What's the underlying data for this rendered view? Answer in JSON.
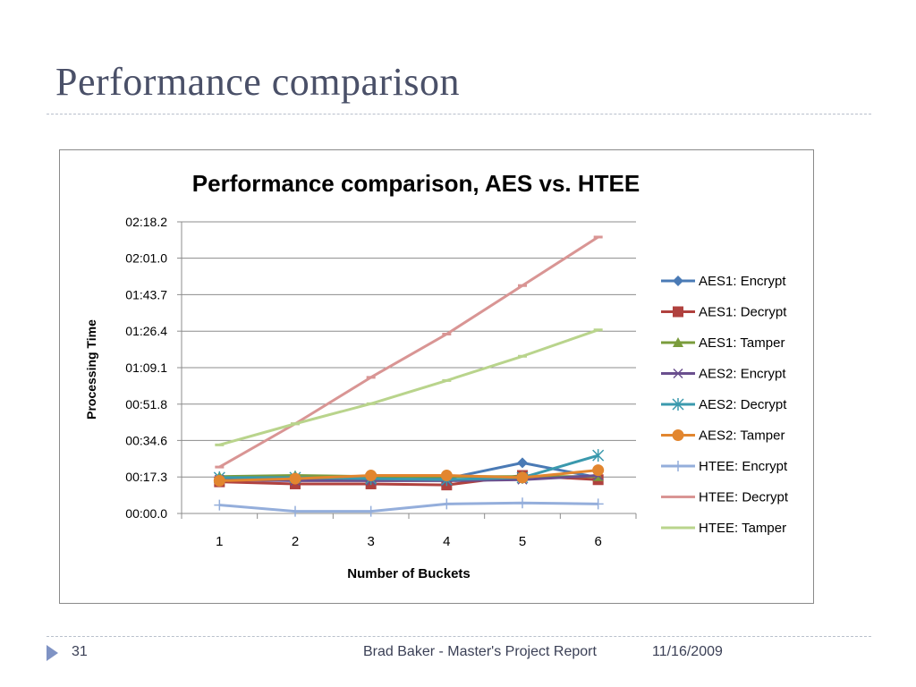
{
  "slide": {
    "title": "Performance comparison",
    "page_number": "31",
    "footer_text": "Brad Baker - Master's Project Report",
    "date": "11/16/2009",
    "colors": {
      "title": "#4a5068",
      "accent": "#7f93c4"
    }
  },
  "chart_data": {
    "type": "line",
    "title": "Performance comparison, AES vs. HTEE",
    "xlabel": "Number of Buckets",
    "ylabel": "Processing Time",
    "x": [
      1,
      2,
      3,
      4,
      5,
      6
    ],
    "y_ticks": [
      "00:00.0",
      "00:17.3",
      "00:34.6",
      "00:51.8",
      "01:09.1",
      "01:26.4",
      "01:43.7",
      "02:01.0",
      "02:18.2"
    ],
    "y_tick_seconds": [
      0,
      17.3,
      34.6,
      51.8,
      69.1,
      86.4,
      103.7,
      121.0,
      138.2
    ],
    "ylim_seconds": [
      0,
      138.2
    ],
    "grid": "horizontal",
    "legend_position": "right",
    "series": [
      {
        "name": "AES1: Encrypt",
        "color": "#4a7ab5",
        "marker": "diamond",
        "values_seconds": [
          16.5,
          16.0,
          16.0,
          16.5,
          24.0,
          17.0
        ]
      },
      {
        "name": "AES1: Decrypt",
        "color": "#b0413e",
        "marker": "square",
        "values_seconds": [
          15.0,
          14.0,
          14.0,
          13.5,
          18.0,
          16.0
        ]
      },
      {
        "name": "AES1: Tamper",
        "color": "#7a9c3c",
        "marker": "triangle",
        "values_seconds": [
          17.5,
          18.0,
          17.5,
          17.5,
          17.5,
          17.5
        ]
      },
      {
        "name": "AES2: Encrypt",
        "color": "#6a4f8e",
        "marker": "x",
        "values_seconds": [
          16.0,
          15.5,
          15.5,
          15.5,
          16.0,
          18.0
        ]
      },
      {
        "name": "AES2: Decrypt",
        "color": "#3a99ad",
        "marker": "star",
        "values_seconds": [
          17.0,
          17.0,
          16.5,
          16.0,
          17.0,
          27.5
        ]
      },
      {
        "name": "AES2: Tamper",
        "color": "#e2862f",
        "marker": "circle",
        "values_seconds": [
          15.5,
          16.5,
          18.0,
          18.0,
          17.0,
          20.5
        ]
      },
      {
        "name": "HTEE: Encrypt",
        "color": "#94aedb",
        "marker": "plus",
        "values_seconds": [
          4.0,
          1.0,
          1.0,
          4.5,
          5.0,
          4.5
        ]
      },
      {
        "name": "HTEE: Decrypt",
        "color": "#d99594",
        "marker": "dash",
        "values_seconds": [
          22.0,
          42.5,
          64.5,
          85.0,
          108.0,
          131.0
        ]
      },
      {
        "name": "HTEE: Tamper",
        "color": "#b9d48c",
        "marker": "dash",
        "values_seconds": [
          32.5,
          42.5,
          52.0,
          63.0,
          74.5,
          87.0
        ]
      }
    ]
  }
}
